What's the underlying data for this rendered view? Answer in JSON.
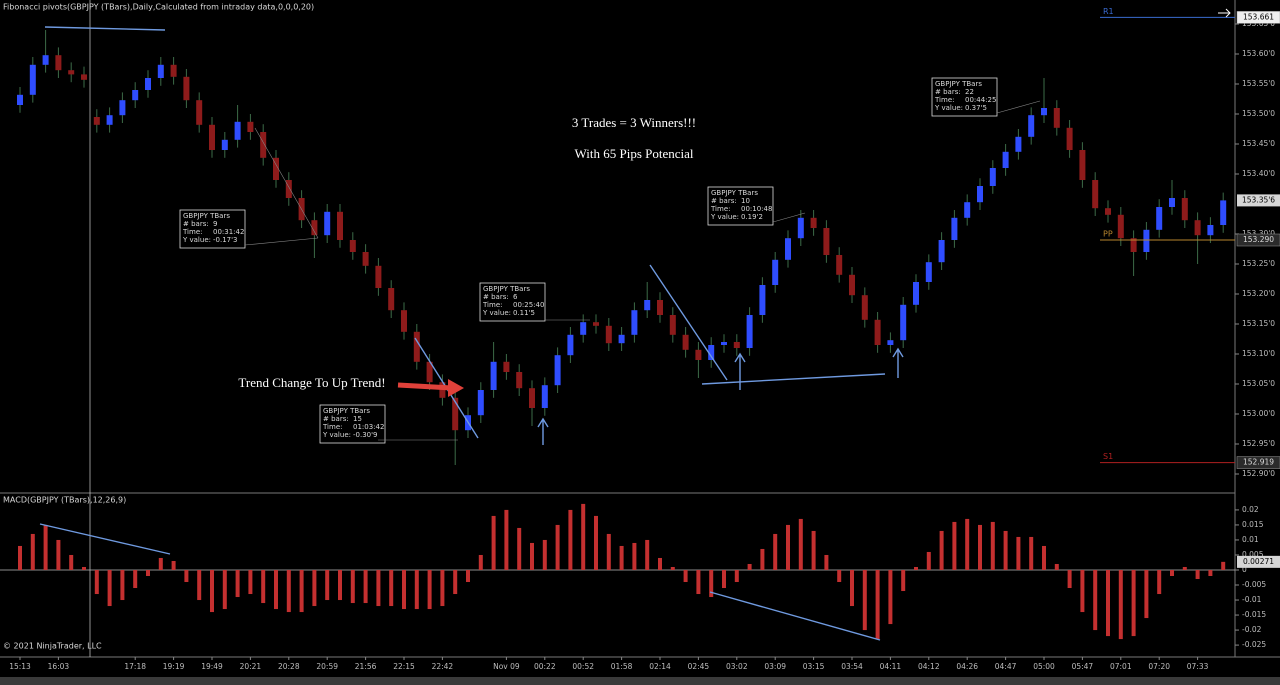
{
  "chart_data": [
    {
      "type": "candlestick",
      "title": "Fibonacci pivots(GBPJPY (TBars),Daily,Calculated from intraday data,0,0,0,20)",
      "up_color": "#2f4dff",
      "down_color": "#8e1b1b",
      "wick_color": "#3d6b48",
      "categories": [
        "15:13",
        null,
        null,
        "16:03",
        null,
        null,
        null,
        null,
        null,
        "17:18",
        null,
        null,
        "19:19",
        null,
        null,
        "19:49",
        null,
        null,
        "20:21",
        null,
        null,
        "20:28",
        null,
        null,
        "20:59",
        null,
        null,
        "21:56",
        null,
        null,
        "22:15",
        null,
        null,
        "22:42",
        null,
        null,
        null,
        null,
        "Nov 09",
        null,
        null,
        "00:22",
        null,
        null,
        "00:52",
        null,
        null,
        "01:58",
        null,
        null,
        "02:14",
        null,
        null,
        "02:45",
        null,
        null,
        "03:02",
        null,
        null,
        "03:09",
        null,
        null,
        "03:15",
        null,
        null,
        "03:54",
        null,
        null,
        "04:11",
        null,
        null,
        "04:12",
        null,
        null,
        "04:26",
        null,
        null,
        "04:47",
        null,
        null,
        "05:00",
        null,
        null,
        "05:47",
        null,
        null,
        "07:01",
        null,
        null,
        "07:20",
        null,
        null,
        "07:33",
        null,
        null
      ],
      "open": [
        153.515,
        153.532,
        153.582,
        153.598,
        153.573,
        153.566,
        153.495,
        153.482,
        153.498,
        153.523,
        153.54,
        153.56,
        153.582,
        153.562,
        153.523,
        153.482,
        153.44,
        153.457,
        153.487,
        153.47,
        153.427,
        153.39,
        153.36,
        153.323,
        153.298,
        153.337,
        153.29,
        153.27,
        153.247,
        153.21,
        153.173,
        153.137,
        153.087,
        153.053,
        153.027,
        152.973,
        152.998,
        153.04,
        153.087,
        153.07,
        153.043,
        153.01,
        153.048,
        153.098,
        153.132,
        153.153,
        153.147,
        153.118,
        153.132,
        153.173,
        153.19,
        153.165,
        153.132,
        153.107,
        153.09,
        153.115,
        153.12,
        153.11,
        153.165,
        153.215,
        153.257,
        153.293,
        153.327,
        153.31,
        153.265,
        153.232,
        153.198,
        153.157,
        153.115,
        153.123,
        153.182,
        153.22,
        153.253,
        153.29,
        153.327,
        153.353,
        153.38,
        153.41,
        153.437,
        153.462,
        153.498,
        153.51,
        153.477,
        153.44,
        153.39,
        153.343,
        153.332,
        153.293,
        153.27,
        153.307,
        153.345,
        153.36,
        153.323,
        153.298,
        153.315
      ],
      "high": [
        153.545,
        153.595,
        153.64,
        153.611,
        153.586,
        153.579,
        153.508,
        153.511,
        153.536,
        153.553,
        153.573,
        153.595,
        153.595,
        153.575,
        153.536,
        153.495,
        153.47,
        153.515,
        153.5,
        153.483,
        153.44,
        153.403,
        153.373,
        153.336,
        153.35,
        153.35,
        153.303,
        153.283,
        153.26,
        153.223,
        153.186,
        153.15,
        153.1,
        153.066,
        153.04,
        153.011,
        153.053,
        153.12,
        153.1,
        153.083,
        153.056,
        153.061,
        153.111,
        153.145,
        153.166,
        153.166,
        153.16,
        153.145,
        153.186,
        153.22,
        153.203,
        153.178,
        153.145,
        153.12,
        153.128,
        153.133,
        153.133,
        153.178,
        153.228,
        153.27,
        153.306,
        153.34,
        153.34,
        153.323,
        153.278,
        153.245,
        153.211,
        153.17,
        153.136,
        153.195,
        153.233,
        153.266,
        153.303,
        153.34,
        153.366,
        153.393,
        153.423,
        153.45,
        153.475,
        153.511,
        153.56,
        153.523,
        153.49,
        153.453,
        153.403,
        153.356,
        153.345,
        153.306,
        153.32,
        153.358,
        153.39,
        153.373,
        153.336,
        153.328,
        153.369
      ],
      "low": [
        153.502,
        153.519,
        153.569,
        153.56,
        153.553,
        153.544,
        153.469,
        153.469,
        153.485,
        153.51,
        153.527,
        153.547,
        153.549,
        153.51,
        153.469,
        153.427,
        153.427,
        153.444,
        153.457,
        153.414,
        153.377,
        153.347,
        153.31,
        153.26,
        153.285,
        153.277,
        153.257,
        153.234,
        153.197,
        153.16,
        153.124,
        153.074,
        153.04,
        153.014,
        152.915,
        152.96,
        152.985,
        153.027,
        153.057,
        153.03,
        152.98,
        152.997,
        153.035,
        153.085,
        153.119,
        153.134,
        153.105,
        153.105,
        153.119,
        153.16,
        153.152,
        153.119,
        153.094,
        153.06,
        153.077,
        153.102,
        153.097,
        153.097,
        153.152,
        153.202,
        153.244,
        153.28,
        153.297,
        153.252,
        153.219,
        153.185,
        153.144,
        153.102,
        153.102,
        153.11,
        153.169,
        153.207,
        153.24,
        153.277,
        153.314,
        153.34,
        153.367,
        153.397,
        153.424,
        153.449,
        153.485,
        153.464,
        153.427,
        153.377,
        153.33,
        153.319,
        153.28,
        153.23,
        153.257,
        153.294,
        153.332,
        153.31,
        153.25,
        153.285,
        153.302
      ],
      "close": [
        153.532,
        153.582,
        153.598,
        153.573,
        153.566,
        153.557,
        153.482,
        153.498,
        153.523,
        153.54,
        153.56,
        153.582,
        153.562,
        153.523,
        153.482,
        153.44,
        153.457,
        153.487,
        153.47,
        153.427,
        153.39,
        153.36,
        153.323,
        153.298,
        153.337,
        153.29,
        153.27,
        153.247,
        153.21,
        153.173,
        153.137,
        153.087,
        153.053,
        153.027,
        152.973,
        152.998,
        153.04,
        153.087,
        153.07,
        153.043,
        153.01,
        153.048,
        153.098,
        153.132,
        153.153,
        153.147,
        153.118,
        153.132,
        153.173,
        153.19,
        153.165,
        153.132,
        153.107,
        153.09,
        153.115,
        153.12,
        153.11,
        153.165,
        153.215,
        153.257,
        153.293,
        153.327,
        153.31,
        153.265,
        153.232,
        153.198,
        153.157,
        153.115,
        153.123,
        153.182,
        153.22,
        153.253,
        153.29,
        153.327,
        153.353,
        153.38,
        153.41,
        153.437,
        153.462,
        153.498,
        153.51,
        153.477,
        153.44,
        153.39,
        153.343,
        153.332,
        153.293,
        153.27,
        153.307,
        153.345,
        153.36,
        153.323,
        153.298,
        153.315,
        153.356
      ],
      "last_price": {
        "value": 153.356,
        "label": "153.35'6"
      },
      "ylim": [
        152.87,
        153.69
      ],
      "yticks": [
        {
          "value": 153.65,
          "label": "153.65'0"
        },
        {
          "value": 153.6,
          "label": "153.60'0"
        },
        {
          "value": 153.55,
          "label": "153.55'0"
        },
        {
          "value": 153.5,
          "label": "153.50'0"
        },
        {
          "value": 153.45,
          "label": "153.45'0"
        },
        {
          "value": 153.4,
          "label": "153.40'0"
        },
        {
          "value": 153.3,
          "label": "153.30'0"
        },
        {
          "value": 153.25,
          "label": "153.25'0"
        },
        {
          "value": 153.2,
          "label": "153.20'0"
        },
        {
          "value": 153.15,
          "label": "153.15'0"
        },
        {
          "value": 153.1,
          "label": "153.10'0"
        },
        {
          "value": 153.05,
          "label": "153.05'0"
        },
        {
          "value": 153,
          "label": "153.00'0"
        },
        {
          "value": 152.95,
          "label": "152.95'0"
        },
        {
          "value": 152.9,
          "label": "152.90'0"
        }
      ],
      "pivots": [
        {
          "name": "R1",
          "value": 153.661,
          "color": "#3a6bd1"
        },
        {
          "name": "PP",
          "value": 153.29,
          "label": "153.290",
          "color": "#b8862e"
        },
        {
          "name": "S1",
          "value": 152.919,
          "color": "#b02020"
        }
      ],
      "annotations": [
        "3 Trades = 3 Winners!!!",
        "With 65 Pips Potencial",
        "Trend Change To Up Trend!"
      ],
      "measure_boxes": [
        {
          "title": "GBPJPY TBars",
          "bars_label": "# bars:",
          "bars": 9,
          "time_label": "Time:",
          "time": "00:31:42",
          "y_label": "Y value:",
          "y_value": "-0.17'3"
        },
        {
          "title": "GBPJPY TBars",
          "bars_label": "# bars:",
          "bars": 15,
          "time_label": "Time:",
          "time": "01:03:42",
          "y_label": "Y value:",
          "y_value": "-0.30'9"
        },
        {
          "title": "GBPJPY TBars",
          "bars_label": "# bars:",
          "bars": 6,
          "time_label": "Time:",
          "time": "00:25:40",
          "y_label": "Y value:",
          "y_value": "0.11'5"
        },
        {
          "title": "GBPJPY TBars",
          "bars_label": "# bars:",
          "bars": 10,
          "time_label": "Time:",
          "time": "00:10:48",
          "y_label": "Y value:",
          "y_value": "0.19'2"
        },
        {
          "title": "GBPJPY TBars",
          "bars_label": "# bars:",
          "bars": 22,
          "time_label": "Time:",
          "time": "00:44:25",
          "y_label": "Y value:",
          "y_value": "0.37'5"
        }
      ]
    },
    {
      "type": "bar",
      "title": "MACD(GBPJPY (TBars),12,26,9)",
      "color": "#c43030",
      "values": [
        0.008,
        0.012,
        0.015,
        0.01,
        0.005,
        0.001,
        -0.008,
        -0.012,
        -0.01,
        -0.006,
        -0.002,
        0.004,
        0.003,
        -0.004,
        -0.01,
        -0.014,
        -0.013,
        -0.009,
        -0.008,
        -0.011,
        -0.013,
        -0.014,
        -0.014,
        -0.012,
        -0.01,
        -0.01,
        -0.011,
        -0.011,
        -0.012,
        -0.012,
        -0.013,
        -0.013,
        -0.013,
        -0.012,
        -0.008,
        -0.004,
        0.005,
        0.018,
        0.02,
        0.014,
        0.009,
        0.01,
        0.015,
        0.02,
        0.022,
        0.018,
        0.012,
        0.008,
        0.009,
        0.01,
        0.004,
        0.001,
        -0.004,
        -0.008,
        -0.009,
        -0.006,
        -0.004,
        0.002,
        0.007,
        0.012,
        0.015,
        0.017,
        0.013,
        0.005,
        -0.004,
        -0.012,
        -0.02,
        -0.023,
        -0.018,
        -0.007,
        0.001,
        0.006,
        0.013,
        0.016,
        0.017,
        0.015,
        0.016,
        0.013,
        0.011,
        0.011,
        0.008,
        0.002,
        -0.006,
        -0.014,
        -0.02,
        -0.022,
        -0.023,
        -0.022,
        -0.016,
        -0.008,
        -0.002,
        0.001,
        -0.003,
        -0.002,
        0.00271
      ],
      "ylim": [
        -0.0283,
        0.0253
      ],
      "yticks": [
        0.02,
        0.015,
        0.01,
        0.005,
        0,
        -0.005,
        -0.01,
        -0.015,
        -0.02,
        -0.025
      ],
      "footer": "© 2021 NinjaTrader, LLC"
    }
  ]
}
